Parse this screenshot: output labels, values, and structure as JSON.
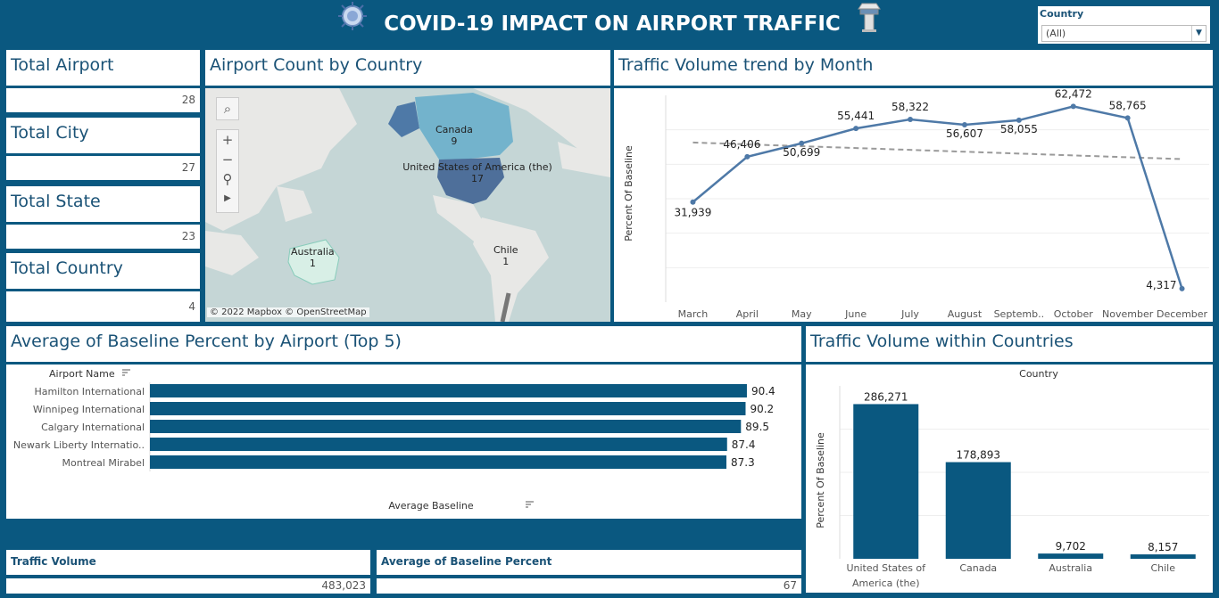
{
  "header": {
    "title": "COVID-19 IMPACT ON AIRPORT TRAFFIC"
  },
  "filter": {
    "label": "Country",
    "value": "(All)"
  },
  "kpis": [
    {
      "title": "Total Airport",
      "value": "28"
    },
    {
      "title": "Total City",
      "value": "27"
    },
    {
      "title": "Total State",
      "value": "23"
    },
    {
      "title": "Total Country",
      "value": "4"
    }
  ],
  "map": {
    "title": "Airport Count by Country",
    "attribution": "© 2022 Mapbox © OpenStreetMap",
    "labels": [
      {
        "name": "Canada",
        "count": "9"
      },
      {
        "name": "United States of America (the)",
        "count": "17"
      },
      {
        "name": "Australia",
        "count": "1"
      },
      {
        "name": "Chile",
        "count": "1"
      }
    ]
  },
  "trend": {
    "title": "Traffic Volume trend by Month",
    "ylabel": "Percent Of Baseline"
  },
  "top5": {
    "title": "Average of Baseline Percent by Airport (Top 5)",
    "header": "Airport Name",
    "xlabel": "Average Baseline"
  },
  "countries": {
    "title": "Traffic Volume within Countries",
    "header": "Country",
    "ylabel": "Percent Of Baseline"
  },
  "summary": [
    {
      "title": "Traffic Volume",
      "value": "483,023"
    },
    {
      "title": "Average of Baseline Percent",
      "value": "67"
    }
  ],
  "colors": {
    "background": "#0a5880",
    "bar": "#0a5880",
    "line": "#4e79a7",
    "trendline": "#9a9a9a"
  },
  "chart_data": [
    {
      "type": "line",
      "title": "Traffic Volume trend by Month",
      "ylabel": "Percent Of Baseline",
      "categories": [
        "March",
        "April",
        "May",
        "June",
        "July",
        "August",
        "Septemb..",
        "October",
        "November",
        "December"
      ],
      "values": [
        31939,
        46406,
        50699,
        55441,
        58322,
        56607,
        58055,
        62472,
        58765,
        4317
      ],
      "value_labels": [
        "31,939",
        "46,406",
        "50,699",
        "55,441",
        "58,322",
        "56,607",
        "58,055",
        "62,472",
        "58,765",
        "4,317"
      ],
      "trendline": true,
      "grid": true
    },
    {
      "type": "bar",
      "orientation": "horizontal",
      "title": "Average of Baseline Percent by Airport (Top 5)",
      "categories": [
        "Hamilton International",
        "Winnipeg International",
        "Calgary International",
        "Newark Liberty Internatio..",
        "Montreal Mirabel"
      ],
      "values": [
        90.4,
        90.2,
        89.5,
        87.4,
        87.3
      ],
      "xlabel": "Average Baseline",
      "xlim": [
        0,
        100
      ]
    },
    {
      "type": "bar",
      "title": "Traffic Volume within Countries",
      "categories": [
        "United States of America (the)",
        "Canada",
        "Australia",
        "Chile"
      ],
      "category_lines": [
        [
          "United States of",
          "America (the)"
        ],
        [
          "Canada"
        ],
        [
          "Australia"
        ],
        [
          "Chile"
        ]
      ],
      "values": [
        286271,
        178893,
        9702,
        8157
      ],
      "value_labels": [
        "286,271",
        "178,893",
        "9,702",
        "8,157"
      ],
      "ylabel": "Percent Of Baseline",
      "ylim": [
        0,
        320000
      ]
    }
  ]
}
